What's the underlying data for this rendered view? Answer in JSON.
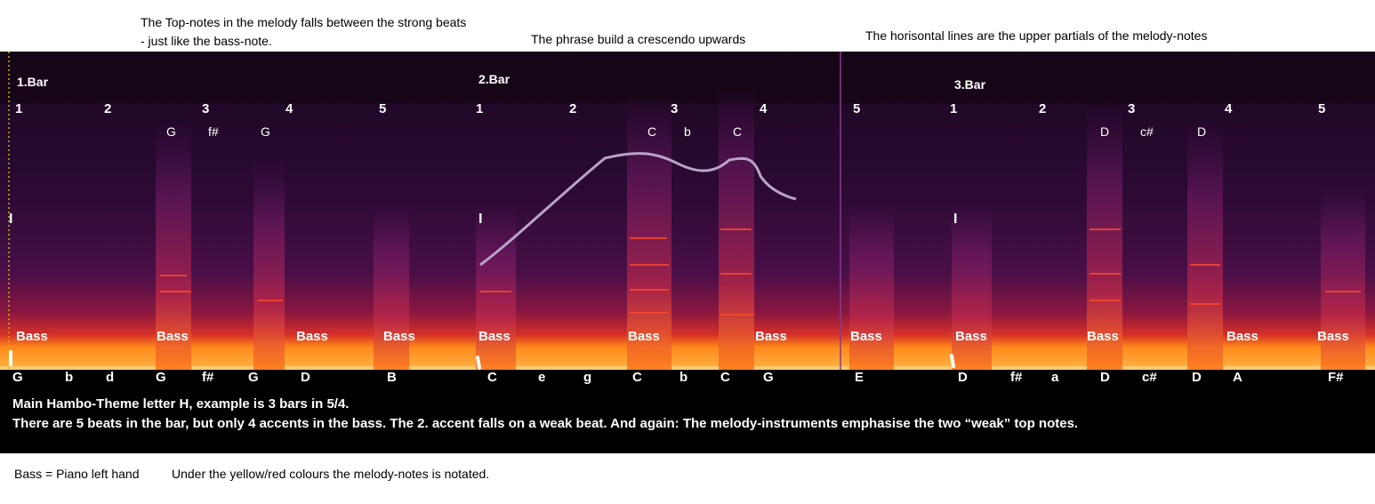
{
  "notes_top": {
    "line1": "The Top-notes in the melody falls between the strong beats",
    "line2": "- just like the bass-note.",
    "phrase": "The phrase build a crescendo upwards",
    "partials": "The horisontal lines are the upper partials of the melody-notes"
  },
  "bars": [
    "1.Bar",
    "2.Bar",
    "3.Bar"
  ],
  "beats": [
    "1",
    "2",
    "3",
    "4",
    "5",
    "1",
    "2",
    "3",
    "4",
    "5",
    "1",
    "2",
    "3",
    "4",
    "5"
  ],
  "high_notes": [
    "G",
    "f#",
    "G",
    "C",
    "b",
    "C",
    "D",
    "c#",
    "D"
  ],
  "bass_label": "Bass",
  "pitches": [
    "G",
    "b",
    "d",
    "G",
    "f#",
    "G",
    "D",
    "B",
    "C",
    "e",
    "g",
    "C",
    "b",
    "C",
    "G",
    "E",
    "D",
    "f#",
    "a",
    "D",
    "c#",
    "D",
    "A",
    "F#"
  ],
  "marker": "I",
  "info": {
    "line1": "Main Hambo-Theme letter H, example is 3 bars in 5/4.",
    "line2": "There are 5 beats in the bar, but only 4 accents in the bass. The 2. accent falls on a weak beat. And again: The melody-instruments emphasise the two “weak” top notes."
  },
  "footer": {
    "bass_def": "Bass = Piano left hand",
    "note": "Under the yellow/red colours the melody-notes is notated."
  },
  "colors": {
    "background": "#000000",
    "spectrum_low": "#ff9a1f",
    "spectrum_mid": "#e0303a",
    "spectrum_high": "#3a0c3e",
    "curve": "#b9a3c6"
  }
}
